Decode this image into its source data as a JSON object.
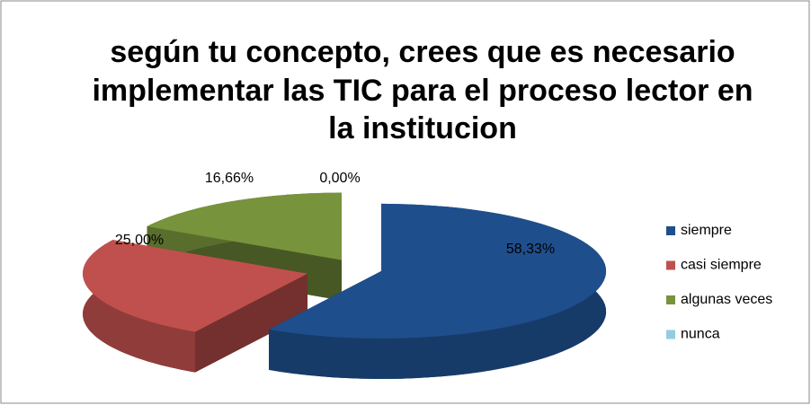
{
  "chart_data": {
    "type": "pie",
    "title": [
      "según tu concepto, crees que es necesario",
      "implementar las TIC para el proceso lector en",
      "la institucion"
    ],
    "categories": [
      "siempre",
      "casi siempre",
      "algunas veces",
      "nunca"
    ],
    "values": [
      58.33,
      25,
      16.66,
      0
    ],
    "value_labels": [
      "58,33%",
      "25,00%",
      "16,66%",
      "0,00%"
    ],
    "colors": [
      "#1f4e8c",
      "#c0504d",
      "#77933c",
      "#93cddd"
    ],
    "legend": "right"
  }
}
